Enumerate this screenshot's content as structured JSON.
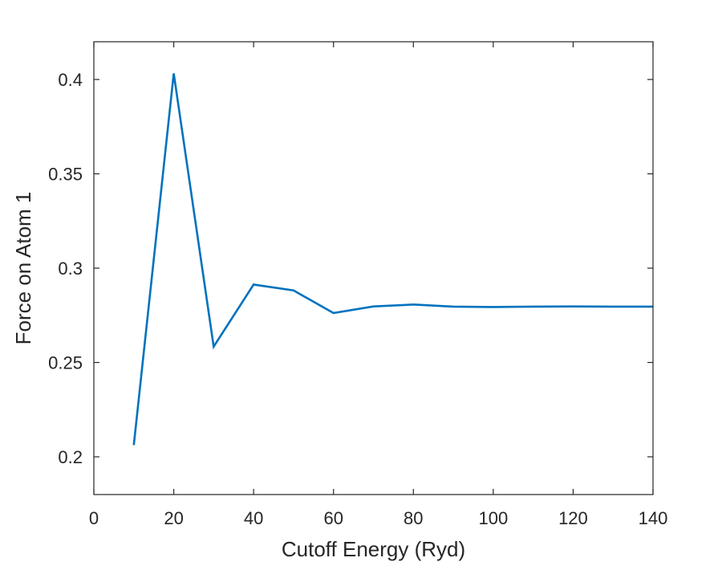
{
  "chart_data": {
    "type": "line",
    "title": "",
    "xlabel": "Cutoff Energy (Ryd)",
    "ylabel": "Force on Atom 1",
    "xlim": [
      0,
      140
    ],
    "ylim": [
      0.18,
      0.42
    ],
    "xticks": [
      0,
      20,
      40,
      60,
      80,
      100,
      120,
      140
    ],
    "xtick_labels": [
      "0",
      "20",
      "40",
      "60",
      "80",
      "100",
      "120",
      "140"
    ],
    "yticks": [
      0.2,
      0.25,
      0.3,
      0.35,
      0.4
    ],
    "ytick_labels": [
      "0.2",
      "0.25",
      "0.3",
      "0.35",
      "0.4"
    ],
    "grid": false,
    "legend": "none",
    "line_color": "#0072BD",
    "axis_color": "#262626",
    "series": [
      {
        "x": [
          10,
          20,
          30,
          40,
          50,
          60,
          70,
          80,
          90,
          100,
          110,
          120,
          130,
          140
        ],
        "values": [
          0.2062,
          0.4032,
          0.2584,
          0.2913,
          0.2882,
          0.2762,
          0.2797,
          0.2807,
          0.2796,
          0.2794,
          0.2796,
          0.2797,
          0.2796,
          0.2796
        ]
      }
    ]
  }
}
